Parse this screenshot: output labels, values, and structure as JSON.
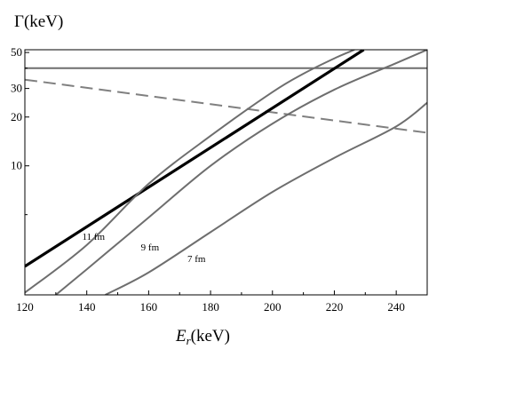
{
  "chart_data": {
    "type": "line",
    "ylabel": "Γ(keV)",
    "xlabel_main": "E",
    "xlabel_sub": "r",
    "xlabel_unit": "(keV)",
    "xlim": [
      120,
      250
    ],
    "ylim": [
      1.6,
      52
    ],
    "yscale": "log",
    "grid": false,
    "xticks": [
      120,
      140,
      160,
      180,
      200,
      220,
      240
    ],
    "yticks": [
      10,
      20,
      30,
      50
    ],
    "yticks_minor": [
      5,
      40
    ],
    "series": [
      {
        "key": "horizontal",
        "style": "solid",
        "color": "#6e6e6e",
        "width": 2,
        "x": [
          120,
          250
        ],
        "y": [
          40,
          40
        ]
      },
      {
        "key": "dashed",
        "style": "dashed",
        "color": "#808080",
        "width": 2,
        "x": [
          120,
          250
        ],
        "y": [
          34,
          16
        ]
      },
      {
        "key": "thick",
        "style": "solid",
        "color": "#000000",
        "width": 3.2,
        "x": [
          120,
          229.5
        ],
        "y": [
          2.4,
          52
        ]
      },
      {
        "key": "r11",
        "name": "11 fm",
        "style": "solid",
        "color": "#6e6e6e",
        "width": 2,
        "x": [
          120,
          140,
          160,
          180,
          200,
          210,
          220,
          226.5
        ],
        "y": [
          1.65,
          3.25,
          7.75,
          15.3,
          28.5,
          37.0,
          46.0,
          52.0
        ]
      },
      {
        "key": "r9",
        "name": "9 fm",
        "style": "solid",
        "color": "#6e6e6e",
        "width": 2,
        "x": [
          130,
          140,
          160,
          180,
          200,
          220,
          240,
          250
        ],
        "y": [
          1.6,
          2.3,
          4.8,
          10.0,
          18.2,
          29.5,
          43.0,
          52.0
        ]
      },
      {
        "key": "r7",
        "name": "7 fm",
        "style": "solid",
        "color": "#6e6e6e",
        "width": 2,
        "x": [
          146,
          160,
          180,
          200,
          220,
          240,
          250
        ],
        "y": [
          1.6,
          2.2,
          3.9,
          6.9,
          11.2,
          17.5,
          24.5
        ]
      }
    ],
    "annotations": [
      {
        "text": "11 fm",
        "x": 138.5,
        "y": 3.5
      },
      {
        "text": "9 fm",
        "x": 157.5,
        "y": 3.0
      },
      {
        "text": "7 fm",
        "x": 172.5,
        "y": 2.55
      }
    ]
  }
}
